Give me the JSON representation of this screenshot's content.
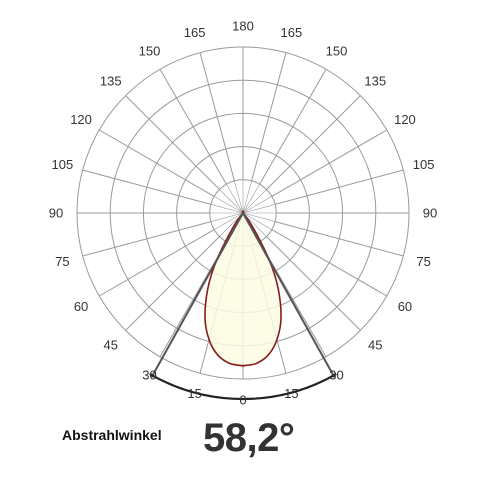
{
  "chart_data": {
    "type": "polar",
    "title": "",
    "angle_ticks_left": [
      "180",
      "165",
      "150",
      "135",
      "120",
      "105",
      "90",
      "75",
      "60",
      "45",
      "30",
      "15",
      "0"
    ],
    "angle_ticks_right": [
      "165",
      "150",
      "135",
      "120",
      "105",
      "90",
      "75",
      "60",
      "45",
      "30",
      "15"
    ],
    "angle_tick_values_deg": [
      0,
      15,
      30,
      45,
      60,
      75,
      90,
      105,
      120,
      135,
      150,
      165,
      180
    ],
    "rings": 5,
    "radial_scale": [
      0,
      1
    ],
    "series": [
      {
        "points": [
          {
            "angle": 0,
            "r": 0.92
          },
          {
            "angle": 5,
            "r": 0.91
          },
          {
            "angle": 10,
            "r": 0.87
          },
          {
            "angle": 15,
            "r": 0.79
          },
          {
            "angle": 20,
            "r": 0.67
          },
          {
            "angle": 25,
            "r": 0.5
          },
          {
            "angle": 29.1,
            "r": 0.33
          },
          {
            "angle": 35,
            "r": 0.1
          },
          {
            "angle": 40,
            "r": 0
          }
        ],
        "fill": "#fcfbe3",
        "stroke": "#8b1a1a"
      }
    ],
    "beam_angle_deg": 58.2,
    "beam_line_color": "#555555",
    "grid_color": "#9a9a9a",
    "grid": true
  },
  "caption": "Abstrahlwinkel",
  "beam_label": "58,2°"
}
